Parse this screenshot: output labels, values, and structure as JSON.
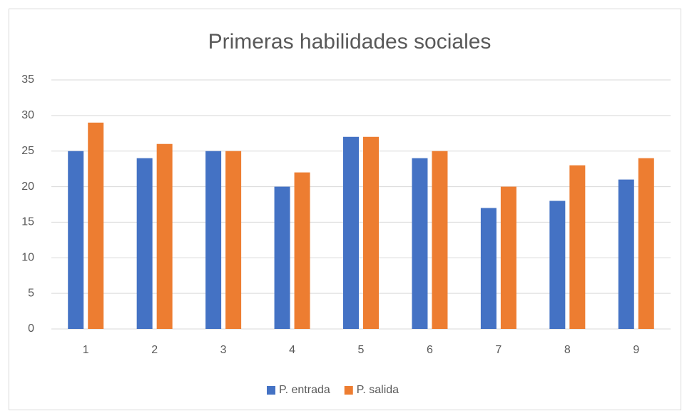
{
  "chart_data": {
    "type": "bar",
    "title": "Primeras habilidades sociales",
    "categories": [
      "1",
      "2",
      "3",
      "4",
      "5",
      "6",
      "7",
      "8",
      "9"
    ],
    "series": [
      {
        "name": "P. entrada",
        "color": "#4472c4",
        "values": [
          25,
          24,
          25,
          20,
          27,
          24,
          17,
          18,
          21
        ]
      },
      {
        "name": "P. salida",
        "color": "#ed7d31",
        "values": [
          29,
          26,
          25,
          22,
          27,
          25,
          20,
          23,
          24
        ]
      }
    ],
    "ylim": [
      0,
      35
    ],
    "yticks": [
      0,
      5,
      10,
      15,
      20,
      25,
      30,
      35
    ],
    "grid": true,
    "legend": "bottom"
  }
}
